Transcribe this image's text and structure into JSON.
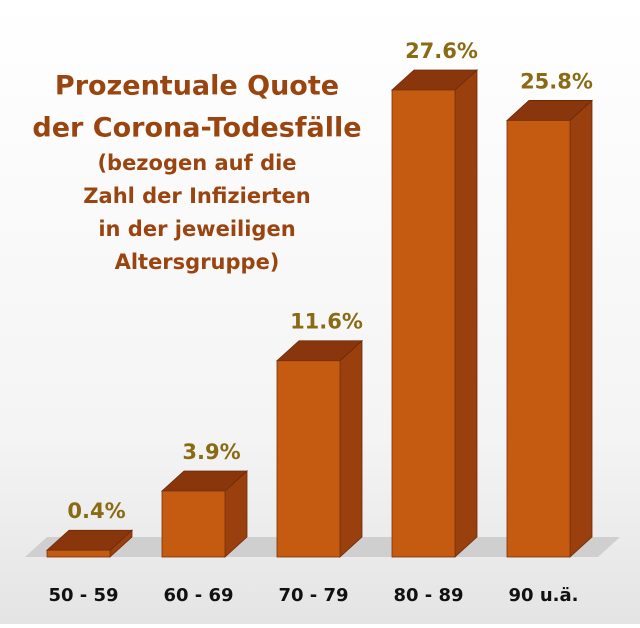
{
  "chart_data": {
    "type": "bar3d",
    "title": [
      "Prozentuale Quote",
      "der Corona-Todesfälle"
    ],
    "subtitle": [
      "(bezogen auf die",
      "Zahl der Infizierten",
      "in der jeweiligen",
      "Altersgruppe)"
    ],
    "categories": [
      "50 - 59",
      "60 - 69",
      "70 - 79",
      "80 - 89",
      "90 u.ä."
    ],
    "values": [
      0.4,
      3.9,
      11.6,
      27.6,
      25.8
    ],
    "value_labels": [
      "0.4%",
      "3.9%",
      "11.6%",
      "27.6%",
      "25.8%"
    ],
    "color": "#c55a11"
  }
}
